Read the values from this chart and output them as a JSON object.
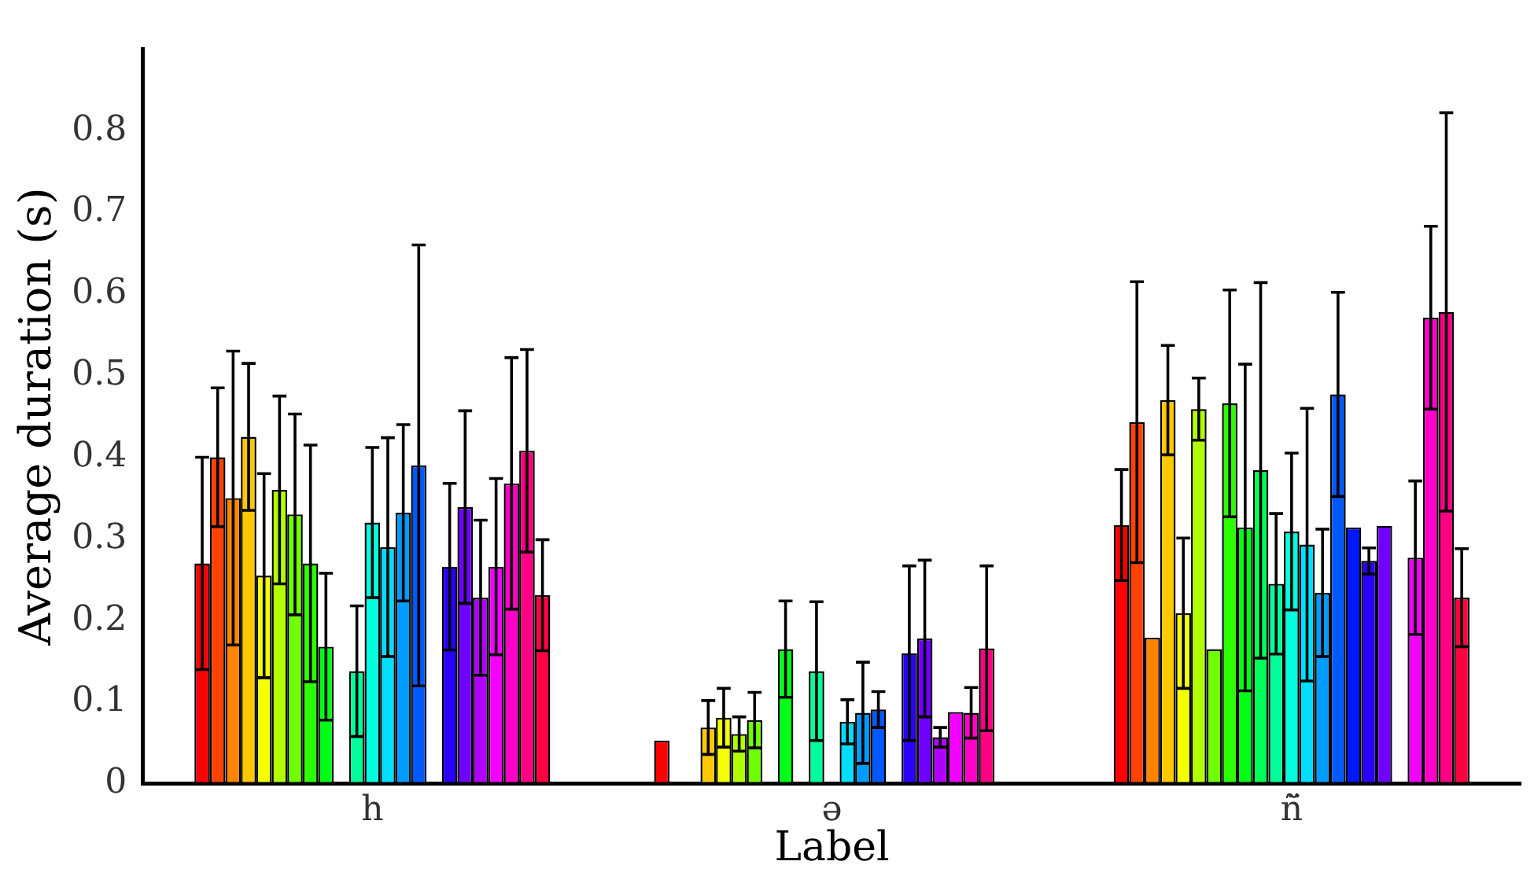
{
  "chart_data": {
    "type": "bar",
    "xlabel": "Label",
    "ylabel": "Average duration (s)",
    "categories": [
      "h",
      "ə",
      "ñ̈"
    ],
    "ylim": [
      0,
      0.9
    ],
    "yticks": [
      0,
      0.1,
      0.2,
      0.3,
      0.4,
      0.5,
      0.6,
      0.7,
      0.8
    ],
    "grid": false,
    "legend": false,
    "series": [
      {
        "color": "#ff0000",
        "values": [
          0.27,
          0.053,
          0.317
        ],
        "errors": [
          0.13,
          null,
          0.068
        ]
      },
      {
        "color": "#ff4200",
        "values": [
          0.4,
          null,
          0.443
        ],
        "errors": [
          0.085,
          null,
          0.172
        ]
      },
      {
        "color": "#ff8500",
        "values": [
          0.35,
          null,
          0.179
        ],
        "errors": [
          0.18,
          null,
          null
        ]
      },
      {
        "color": "#ffc800",
        "values": [
          0.425,
          0.069,
          0.47
        ],
        "errors": [
          0.09,
          0.033,
          0.067
        ]
      },
      {
        "color": "#f4ff00",
        "values": [
          0.255,
          0.081,
          0.209
        ],
        "errors": [
          0.125,
          0.036,
          0.092
        ]
      },
      {
        "color": "#b1ff00",
        "values": [
          0.36,
          0.061,
          0.459
        ],
        "errors": [
          0.115,
          0.021,
          0.038
        ]
      },
      {
        "color": "#6fff00",
        "values": [
          0.33,
          0.078,
          0.165
        ],
        "errors": [
          0.123,
          0.034,
          null
        ]
      },
      {
        "color": "#2cff00",
        "values": [
          0.27,
          null,
          0.466
        ],
        "errors": [
          0.145,
          null,
          0.139
        ]
      },
      {
        "color": "#00ff16",
        "values": [
          0.168,
          0.165,
          0.314
        ],
        "errors": [
          0.09,
          0.059,
          0.2
        ]
      },
      {
        "color": "#00ff59",
        "values": [
          null,
          null,
          0.384
        ],
        "errors": [
          null,
          null,
          0.23
        ]
      },
      {
        "color": "#00ff9b",
        "values": [
          0.138,
          0.138,
          0.245
        ],
        "errors": [
          0.08,
          0.085,
          0.086
        ]
      },
      {
        "color": "#00ffde",
        "values": [
          0.32,
          null,
          0.309
        ],
        "errors": [
          0.092,
          null,
          0.096
        ]
      },
      {
        "color": "#00deff",
        "values": [
          0.29,
          0.076,
          0.293
        ],
        "errors": [
          0.134,
          0.027,
          0.167
        ]
      },
      {
        "color": "#009bff",
        "values": [
          0.332,
          0.087,
          0.234
        ],
        "errors": [
          0.108,
          0.062,
          0.078
        ]
      },
      {
        "color": "#0059ff",
        "values": [
          0.39,
          0.091,
          0.477
        ],
        "errors": [
          0.27,
          0.022,
          0.125
        ]
      },
      {
        "color": "#0016ff",
        "values": [
          null,
          null,
          0.314
        ],
        "errors": [
          null,
          null,
          null
        ]
      },
      {
        "color": "#2c00ff",
        "values": [
          0.266,
          0.16,
          0.273
        ],
        "errors": [
          0.102,
          0.107,
          0.016
        ]
      },
      {
        "color": "#6f00ff",
        "values": [
          0.339,
          0.178,
          0.316
        ],
        "errors": [
          0.118,
          0.096,
          null
        ]
      },
      {
        "color": "#b100ff",
        "values": [
          0.228,
          0.057,
          null
        ],
        "errors": [
          0.095,
          0.012,
          null
        ]
      },
      {
        "color": "#f400ff",
        "values": [
          0.266,
          0.088,
          0.277
        ],
        "errors": [
          0.108,
          null,
          0.094
        ]
      },
      {
        "color": "#ff00c8",
        "values": [
          0.368,
          0.087,
          0.571
        ],
        "errors": [
          0.154,
          0.031,
          0.112
        ]
      },
      {
        "color": "#ff0085",
        "values": [
          0.408,
          0.166,
          0.578
        ],
        "errors": [
          0.124,
          0.101,
          0.244
        ]
      },
      {
        "color": "#ff0042",
        "values": [
          0.231,
          null,
          0.228
        ],
        "errors": [
          0.068,
          null,
          0.06
        ]
      }
    ]
  }
}
